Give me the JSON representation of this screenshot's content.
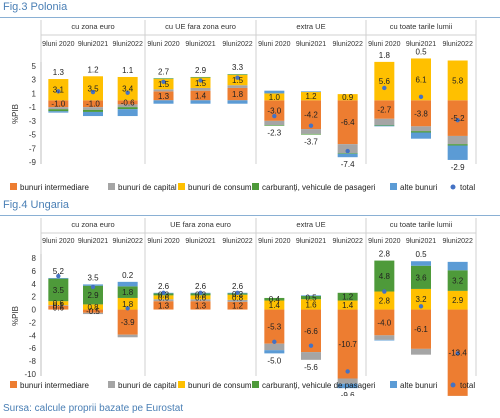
{
  "figures": {
    "fig3_title": "Fig.3 Polonia",
    "fig4_title": "Fig.4 Ungaria",
    "source": "Sursa: calcule proprii bazate pe Eurostat"
  },
  "colors": {
    "bunuri_intermediare": "#ed7d31",
    "bunuri_de_capital": "#a5a5a5",
    "bunuri_de_consum": "#ffc000",
    "carburanti": "#4e9a3a",
    "alte_bunuri": "#5b9bd5",
    "total": "#4472c4"
  },
  "chart_data": [
    {
      "type": "bar",
      "stacked": true,
      "title": "Fig.3 Polonia",
      "ylabel": "%PIB",
      "ylim": [
        -9,
        5
      ],
      "yticks": [
        -9,
        -7,
        -5,
        -3,
        -1,
        1,
        3,
        5
      ],
      "groups": [
        "cu zona euro",
        "cu UE fara zona euro",
        "extra UE",
        "cu toate tarile lumii"
      ],
      "periods": [
        "9luni 2020",
        "9luni2021",
        "9luni2022"
      ],
      "series_names": [
        "bunuri intermediare",
        "bunuri de capital",
        "bunuri de consum",
        "carburanți, vehicule de pasageri",
        "alte bunuri",
        "total"
      ],
      "bars": [
        {
          "group": 0,
          "period": 0,
          "bunuri_intermediare": -1.0,
          "bunuri_de_capital": -0.3,
          "bunuri_de_consum": 3.1,
          "carburanti": -0.3,
          "alte_bunuri": -0.2,
          "total": 1.3
        },
        {
          "group": 0,
          "period": 1,
          "bunuri_intermediare": -1.0,
          "bunuri_de_capital": -0.4,
          "bunuri_de_consum": 3.5,
          "carburanti": -0.3,
          "alte_bunuri": -0.6,
          "total": 1.2
        },
        {
          "group": 0,
          "period": 2,
          "bunuri_intermediare": -0.6,
          "bunuri_de_capital": -0.4,
          "bunuri_de_consum": 3.4,
          "carburanti": -0.3,
          "alte_bunuri": -1.0,
          "total": 1.1
        },
        {
          "group": 1,
          "period": 0,
          "bunuri_intermediare": 1.3,
          "bunuri_de_capital": 0.3,
          "bunuri_de_consum": 1.5,
          "carburanti": 0.1,
          "alte_bunuri": -0.5,
          "total": 2.7
        },
        {
          "group": 1,
          "period": 1,
          "bunuri_intermediare": 1.4,
          "bunuri_de_capital": 0.4,
          "bunuri_de_consum": 1.5,
          "carburanti": 0.1,
          "alte_bunuri": -0.5,
          "total": 2.9
        },
        {
          "group": 1,
          "period": 2,
          "bunuri_intermediare": 1.8,
          "bunuri_de_capital": 0.4,
          "bunuri_de_consum": 1.5,
          "carburanti": 0.1,
          "alte_bunuri": -0.5,
          "total": 3.3
        },
        {
          "group": 2,
          "period": 0,
          "bunuri_intermediare": -3.0,
          "bunuri_de_capital": -0.6,
          "bunuri_de_consum": 1.0,
          "carburanti": -0.1,
          "alte_bunuri": 0.4,
          "total": -2.3
        },
        {
          "group": 2,
          "period": 1,
          "bunuri_intermediare": -4.2,
          "bunuri_de_capital": -0.7,
          "bunuri_de_consum": 1.2,
          "carburanti": -0.1,
          "alte_bunuri": 0.1,
          "total": -3.7
        },
        {
          "group": 2,
          "period": 2,
          "bunuri_intermediare": -6.4,
          "bunuri_de_capital": -1.3,
          "bunuri_de_consum": 0.9,
          "carburanti": -0.1,
          "alte_bunuri": -0.5,
          "total": -7.4
        },
        {
          "group": 3,
          "period": 0,
          "bunuri_intermediare": -2.7,
          "bunuri_de_capital": -0.9,
          "bunuri_de_consum": 5.6,
          "carburanti": -0.1,
          "alte_bunuri": -0.1,
          "total": 1.8
        },
        {
          "group": 3,
          "period": 1,
          "bunuri_intermediare": -3.8,
          "bunuri_de_capital": -0.7,
          "bunuri_de_consum": 6.1,
          "carburanti": -0.2,
          "alte_bunuri": -0.9,
          "total": 0.5
        },
        {
          "group": 3,
          "period": 2,
          "bunuri_intermediare": -5.2,
          "bunuri_de_capital": -1.2,
          "bunuri_de_consum": 5.8,
          "carburanti": -0.2,
          "alte_bunuri": -2.1,
          "total": -2.9
        }
      ],
      "labels": [
        {
          "group": 0,
          "period": 0,
          "total": "1.3",
          "bunuri_de_consum": "3.1",
          "bunuri_intermediare": "-1.0"
        },
        {
          "group": 0,
          "period": 1,
          "total": "1.2",
          "bunuri_de_consum": "3.5",
          "bunuri_intermediare": "-1.0"
        },
        {
          "group": 0,
          "period": 2,
          "total": "1.1",
          "bunuri_de_consum": "3.4",
          "bunuri_intermediare": "-0.6"
        },
        {
          "group": 1,
          "period": 0,
          "total": "2.7",
          "bunuri_de_consum": "1.5",
          "bunuri_intermediare": "1.3"
        },
        {
          "group": 1,
          "period": 1,
          "total": "2.9",
          "bunuri_de_consum": "1.5",
          "bunuri_intermediare": "1.4"
        },
        {
          "group": 1,
          "period": 2,
          "total": "3.3",
          "bunuri_de_consum": "1.5",
          "bunuri_intermediare": "1.8"
        },
        {
          "group": 2,
          "period": 0,
          "total": "-2.3",
          "bunuri_de_consum": "1.0",
          "bunuri_intermediare": "-3.0"
        },
        {
          "group": 2,
          "period": 1,
          "total": "-3.7",
          "bunuri_de_consum": "1.2",
          "bunuri_intermediare": "-4.2"
        },
        {
          "group": 2,
          "period": 2,
          "total": "-7.4",
          "bunuri_de_consum": "0.9",
          "bunuri_intermediare": "-6.4"
        },
        {
          "group": 3,
          "period": 0,
          "total": "1.8",
          "bunuri_de_consum": "5.6",
          "bunuri_intermediare": "-2.7"
        },
        {
          "group": 3,
          "period": 1,
          "total": "0.5",
          "bunuri_de_consum": "6.1",
          "bunuri_intermediare": "-3.8"
        },
        {
          "group": 3,
          "period": 2,
          "total": "-2.9",
          "bunuri_de_consum": "5.8",
          "bunuri_intermediare": "-5.2"
        }
      ],
      "legend_position": "bottom",
      "grid": false
    },
    {
      "type": "bar",
      "stacked": true,
      "title": "Fig.4 Ungaria",
      "ylabel": "%PIB",
      "ylim": [
        -10,
        8
      ],
      "yticks": [
        -10,
        -8,
        -6,
        -4,
        -2,
        0,
        2,
        4,
        6,
        8
      ],
      "groups": [
        "cu zona euro",
        "UE fara zona euro",
        "extra UE",
        "cu toate tarile lumii"
      ],
      "periods": [
        "9luni 2020",
        "9luni2021",
        "9luni2022"
      ],
      "series_names": [
        "bunuri intermediare",
        "bunuri de capital",
        "bunuri de consum",
        "carburanți, vehicule de pasageri",
        "alte bunuri",
        "total"
      ],
      "bars": [
        {
          "group": 0,
          "period": 0,
          "bunuri_intermediare": 0.6,
          "bunuri_de_capital": 0.1,
          "bunuri_de_consum": 0.6,
          "carburanti": 3.5,
          "alte_bunuri": 0.1,
          "total": 5.2
        },
        {
          "group": 0,
          "period": 1,
          "bunuri_intermediare": -0.5,
          "bunuri_de_capital": -0.2,
          "bunuri_de_consum": 0.8,
          "carburanti": 2.9,
          "alte_bunuri": 0.2,
          "total": 3.5
        },
        {
          "group": 0,
          "period": 2,
          "bunuri_intermediare": -3.9,
          "bunuri_de_capital": -0.4,
          "bunuri_de_consum": 1.8,
          "carburanti": 1.8,
          "alte_bunuri": 0.7,
          "total": 0.2
        },
        {
          "group": 1,
          "period": 0,
          "bunuri_intermediare": 1.3,
          "bunuri_de_capital": 0.3,
          "bunuri_de_consum": 0.6,
          "carburanti": 0.3,
          "alte_bunuri": 0.1,
          "total": 2.6
        },
        {
          "group": 1,
          "period": 1,
          "bunuri_intermediare": 1.3,
          "bunuri_de_capital": 0.3,
          "bunuri_de_consum": 0.6,
          "carburanti": 0.3,
          "alte_bunuri": 0.1,
          "total": 2.6
        },
        {
          "group": 1,
          "period": 2,
          "bunuri_intermediare": 1.2,
          "bunuri_de_capital": 0.3,
          "bunuri_de_consum": 0.8,
          "carburanti": 0.2,
          "alte_bunuri": 0.1,
          "total": 2.6
        },
        {
          "group": 2,
          "period": 0,
          "bunuri_intermediare": -5.3,
          "bunuri_de_capital": -1.0,
          "bunuri_de_consum": 1.4,
          "carburanti": 0.4,
          "alte_bunuri": -0.5,
          "total": -5.0
        },
        {
          "group": 2,
          "period": 1,
          "bunuri_intermediare": -6.6,
          "bunuri_de_capital": -1.2,
          "bunuri_de_consum": 1.6,
          "carburanti": 0.5,
          "alte_bunuri": 0.1,
          "total": -5.6
        },
        {
          "group": 2,
          "period": 2,
          "bunuri_intermediare": -10.7,
          "bunuri_de_capital": -0.8,
          "bunuri_de_consum": 1.4,
          "carburanti": 1.2,
          "alte_bunuri": -0.7,
          "total": -9.6
        },
        {
          "group": 3,
          "period": 0,
          "bunuri_intermediare": -4.0,
          "bunuri_de_capital": -0.7,
          "bunuri_de_consum": 2.8,
          "carburanti": 4.8,
          "alte_bunuri": -0.1,
          "total": 2.8
        },
        {
          "group": 3,
          "period": 1,
          "bunuri_intermediare": -6.1,
          "bunuri_de_capital": -0.9,
          "bunuri_de_consum": 3.2,
          "carburanti": 3.6,
          "alte_bunuri": 0.7,
          "total": 0.5
        },
        {
          "group": 3,
          "period": 2,
          "bunuri_intermediare": -13.4,
          "bunuri_de_capital": -0.7,
          "bunuri_de_consum": 2.9,
          "carburanti": 3.2,
          "alte_bunuri": 1.3,
          "total": -6.8
        }
      ],
      "labels": [
        {
          "group": 0,
          "period": 0,
          "total": "5.2",
          "carburanti": "3.5",
          "bunuri_de_consum": "0.6",
          "bunuri_intermediare": "0.6",
          "bunuri_de_capital": "0.1"
        },
        {
          "group": 0,
          "period": 1,
          "total": "3.5",
          "carburanti": "2.9",
          "bunuri_de_consum": "0.8",
          "bunuri_intermediare": "-0.5"
        },
        {
          "group": 0,
          "period": 2,
          "total": "0.2",
          "carburanti": "1.8",
          "bunuri_de_consum": "1.8",
          "bunuri_intermediare": "-3.9"
        },
        {
          "group": 1,
          "period": 0,
          "total": "2.6",
          "bunuri_de_consum": "0.6",
          "bunuri_intermediare": "1.3",
          "carburanti": "0.3"
        },
        {
          "group": 1,
          "period": 1,
          "total": "2.6",
          "bunuri_de_consum": "0.6",
          "bunuri_intermediare": "1.3",
          "carburanti": "0.3"
        },
        {
          "group": 1,
          "period": 2,
          "total": "2.6",
          "bunuri_de_consum": "0.8",
          "bunuri_intermediare": "1.2",
          "carburanti": "0.2"
        },
        {
          "group": 2,
          "period": 0,
          "total": "-5.0",
          "bunuri_de_consum": "1.4",
          "bunuri_intermediare": "-5.3",
          "carburanti": "0.4"
        },
        {
          "group": 2,
          "period": 1,
          "total": "-5.6",
          "bunuri_de_consum": "1.6",
          "bunuri_intermediare": "-6.6",
          "carburanti": "0.5"
        },
        {
          "group": 2,
          "period": 2,
          "total": "-9.6",
          "bunuri_de_consum": "1.4",
          "bunuri_intermediare": "-10.7",
          "carburanti": "1.2"
        },
        {
          "group": 3,
          "period": 0,
          "total": "2.8",
          "carburanti": "4.8",
          "bunuri_de_consum": "2.8",
          "bunuri_intermediare": "-4.0"
        },
        {
          "group": 3,
          "period": 1,
          "total": "0.5",
          "carburanti": "3.6",
          "bunuri_de_consum": "3.2",
          "bunuri_intermediare": "-6.1"
        },
        {
          "group": 3,
          "period": 2,
          "total": "-6.8",
          "carburanti": "3.2",
          "bunuri_de_consum": "2.9",
          "bunuri_intermediare": "-13.4"
        }
      ],
      "legend_position": "bottom",
      "grid": false
    }
  ]
}
